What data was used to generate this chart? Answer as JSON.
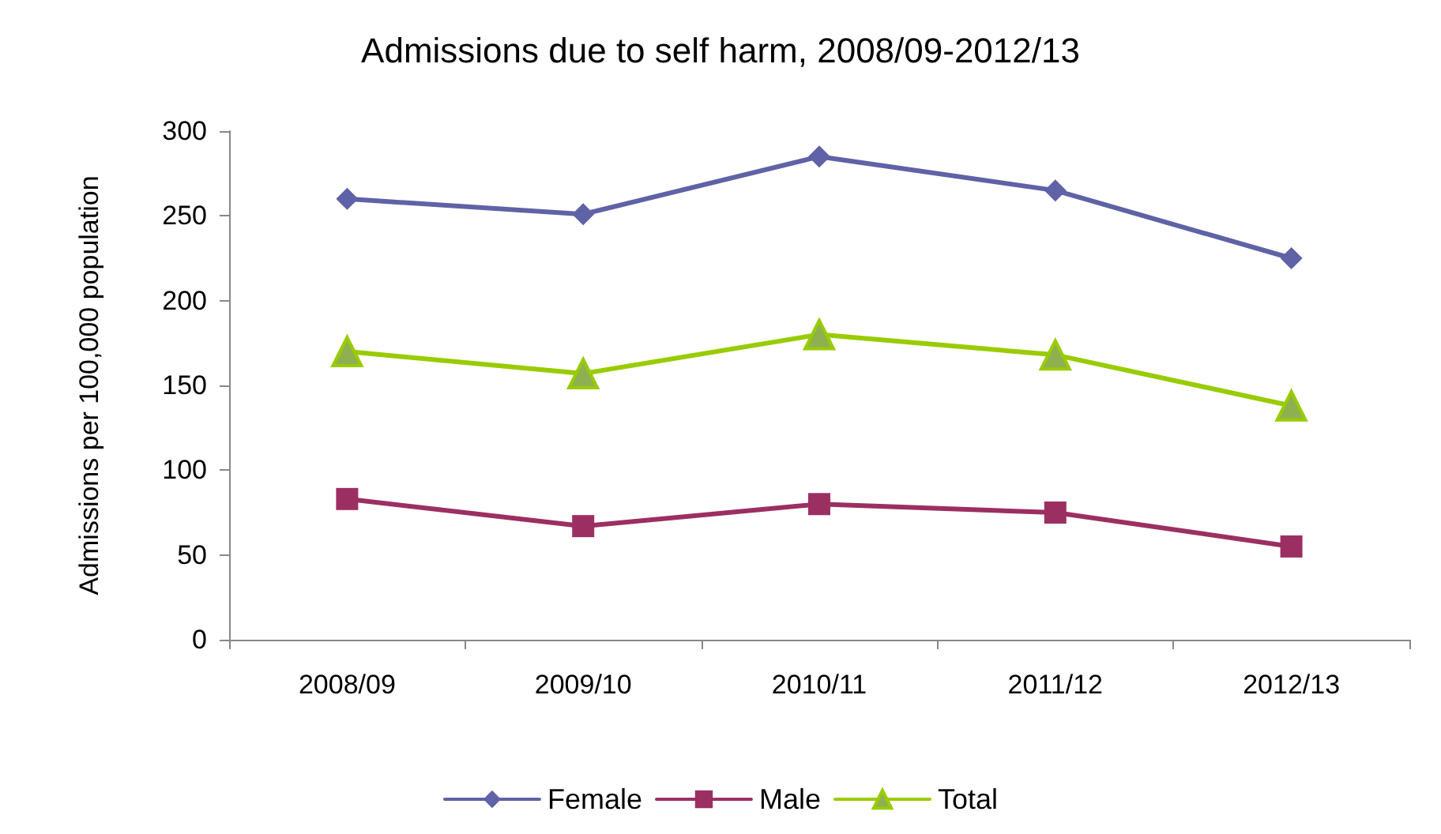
{
  "chart_data": {
    "type": "line",
    "title": "Admissions due to self harm, 2008/09-2012/13",
    "ylabel": "Admissions per 100,000 population",
    "categories": [
      "2008/09",
      "2009/10",
      "2010/11",
      "2011/12",
      "2012/13"
    ],
    "series": [
      {
        "name": "Female",
        "color": "#5f62a6",
        "marker": "diamond",
        "values": [
          260,
          251,
          285,
          265,
          225
        ]
      },
      {
        "name": "Male",
        "color": "#9c2f62",
        "marker": "square",
        "values": [
          83,
          67,
          80,
          75,
          55
        ]
      },
      {
        "name": "Total",
        "color": "#99cc00",
        "marker": "triangle",
        "values": [
          170,
          157,
          180,
          168,
          138
        ]
      }
    ],
    "ylim": [
      0,
      300
    ],
    "yticks": [
      0,
      50,
      100,
      150,
      200,
      250,
      300
    ],
    "grid": false,
    "legend": "bottom",
    "line_style": "solid"
  }
}
